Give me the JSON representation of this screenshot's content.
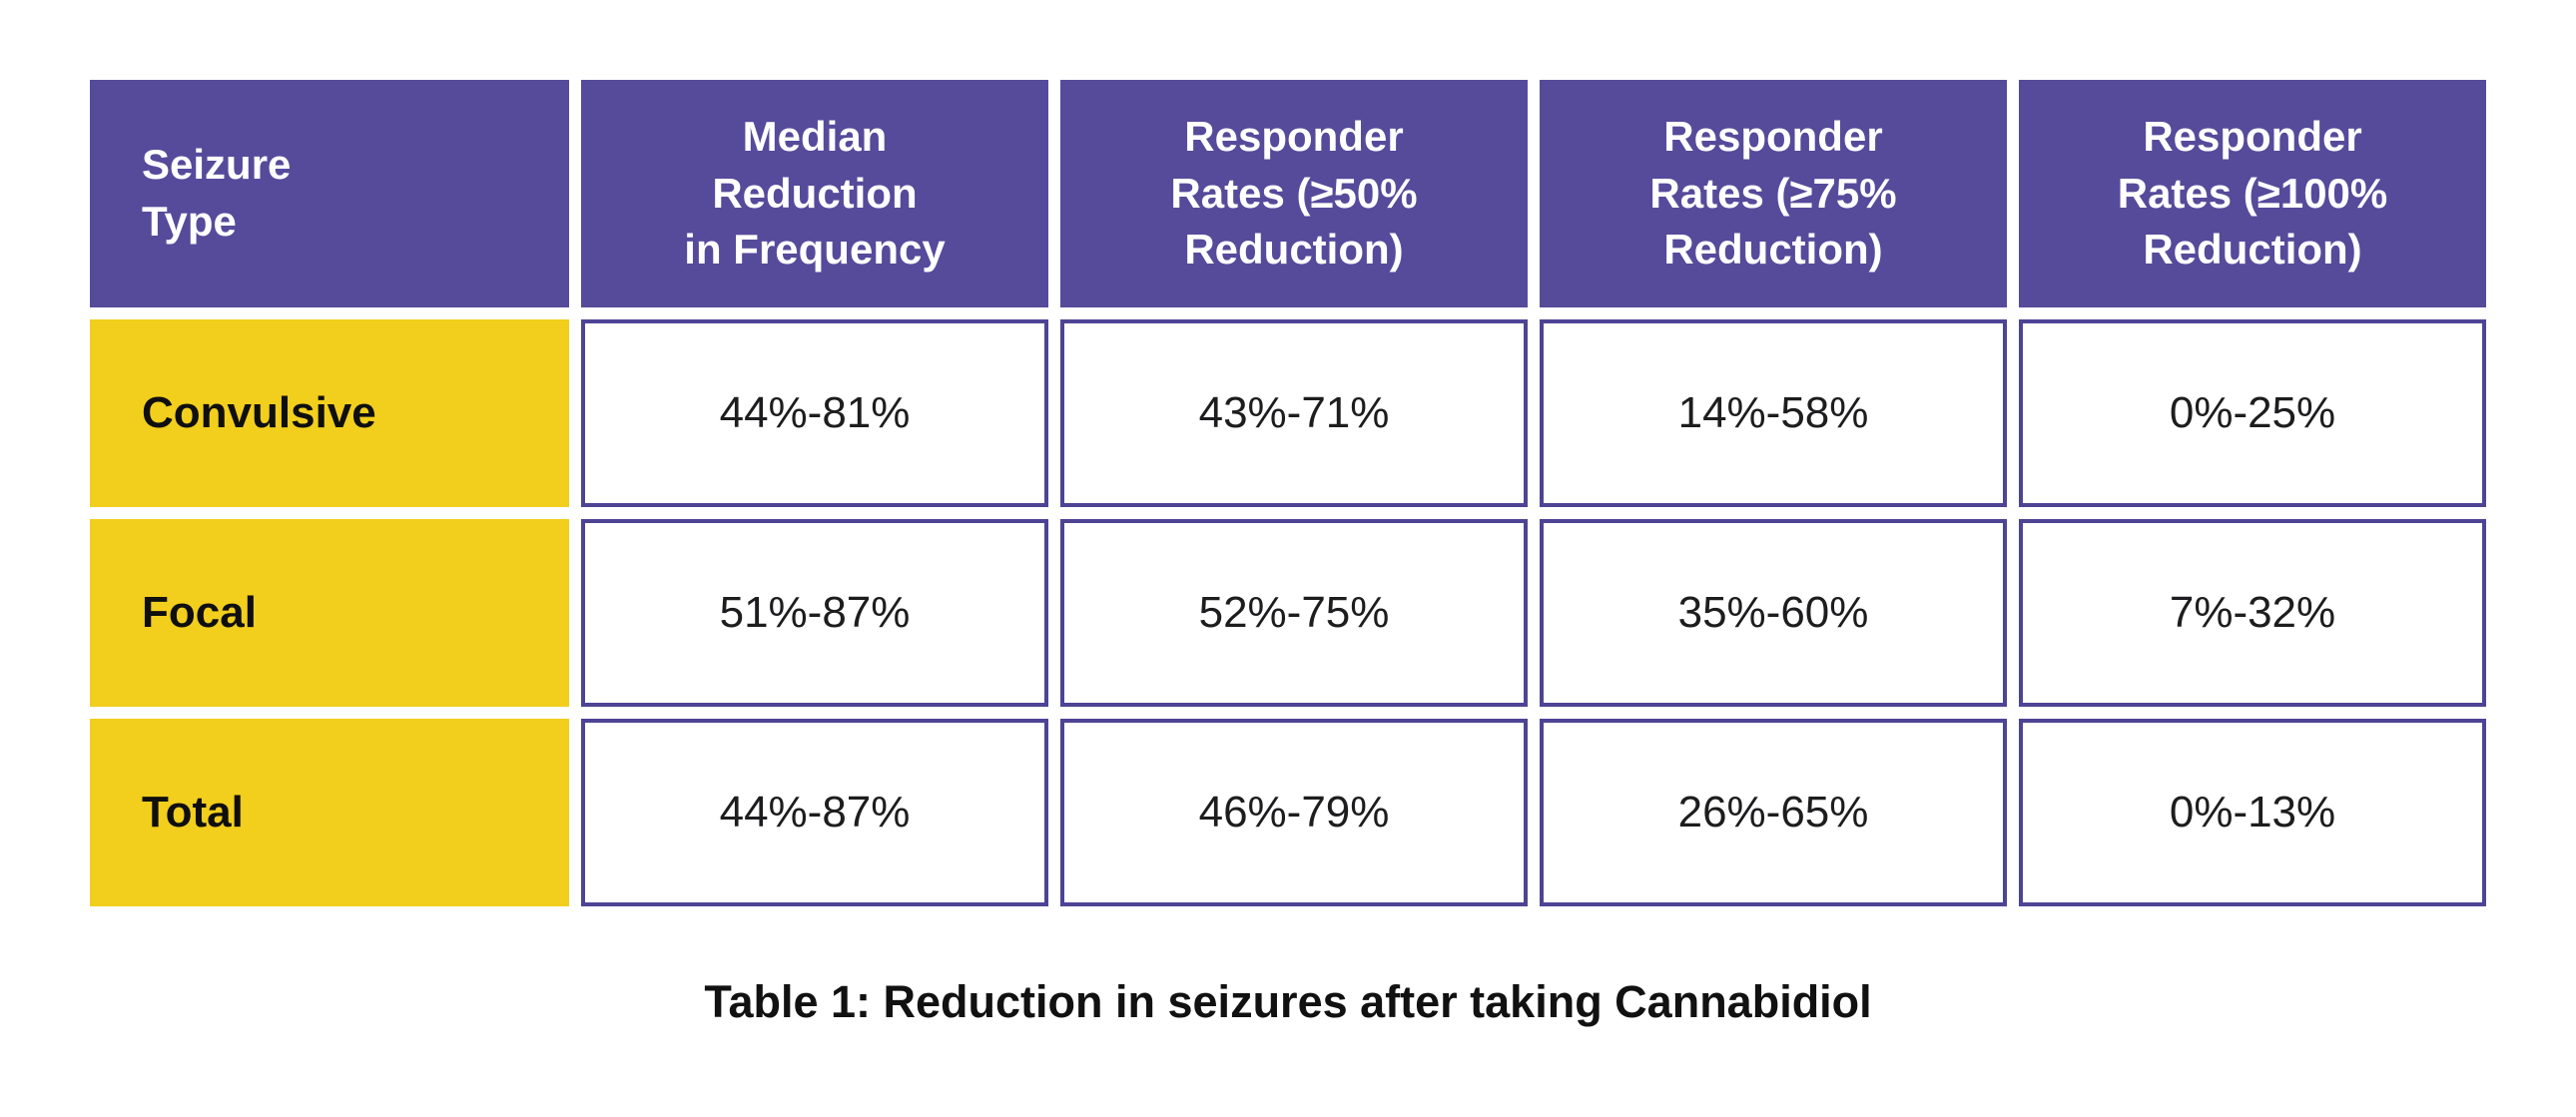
{
  "colors": {
    "header_purple": "#564a9b",
    "cell_border_purple": "#4d4495",
    "row_label_yellow": "#f2ce1d",
    "header_text": "#ffffff",
    "body_text": "#1d1d1f",
    "background": "#ffffff"
  },
  "table": {
    "headers": [
      {
        "id": "seizure-type",
        "label": "Seizure\nType"
      },
      {
        "id": "median-reduction",
        "label": "Median\nReduction\nin Frequency"
      },
      {
        "id": "responder-50",
        "label": "Responder\nRates (≥50%\nReduction)"
      },
      {
        "id": "responder-75",
        "label": "Responder\nRates (≥75%\nReduction)"
      },
      {
        "id": "responder-100",
        "label": "Responder\nRates (≥100%\nReduction)"
      }
    ],
    "rows": [
      {
        "label": "Convulsive",
        "values": [
          "44%-81%",
          "43%-71%",
          "14%-58%",
          "0%-25%"
        ]
      },
      {
        "label": "Focal",
        "values": [
          "51%-87%",
          "52%-75%",
          "35%-60%",
          "7%-32%"
        ]
      },
      {
        "label": "Total",
        "values": [
          "44%-87%",
          "46%-79%",
          "26%-65%",
          "0%-13%"
        ]
      }
    ]
  },
  "caption": "Table 1: Reduction in seizures after taking Cannabidiol",
  "chart_data": {
    "type": "table",
    "title": "Table 1: Reduction in seizures after taking Cannabidiol",
    "columns": [
      "Seizure Type",
      "Median Reduction in Frequency",
      "Responder Rates (≥50% Reduction)",
      "Responder Rates (≥75% Reduction)",
      "Responder Rates (≥100% Reduction)"
    ],
    "rows": [
      [
        "Convulsive",
        "44%-81%",
        "43%-71%",
        "14%-58%",
        "0%-25%"
      ],
      [
        "Focal",
        "51%-87%",
        "52%-75%",
        "35%-60%",
        "7%-32%"
      ],
      [
        "Total",
        "44%-87%",
        "46%-79%",
        "26%-65%",
        "0%-13%"
      ]
    ],
    "layout": {
      "header_fill": "#564a9b",
      "row_label_fill": "#f2ce1d",
      "cell_border": "#4d4495",
      "caption_position": "below-center"
    }
  }
}
